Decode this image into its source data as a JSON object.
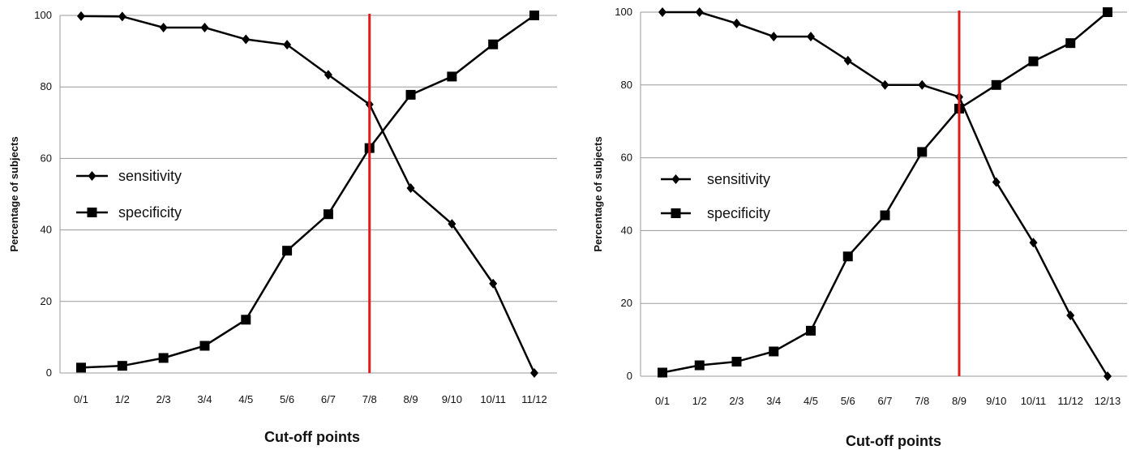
{
  "chart_data": [
    {
      "type": "line",
      "xlabel": "Cut-off points",
      "ylabel": "Percentage of subjects",
      "ylim": [
        0,
        100
      ],
      "yticks": [
        0,
        20,
        40,
        60,
        80,
        100
      ],
      "categories": [
        "0/1",
        "1/2",
        "2/3",
        "3/4",
        "4/5",
        "5/6",
        "6/7",
        "7/8",
        "8/9",
        "9/10",
        "10/11",
        "11/12"
      ],
      "series": [
        {
          "name": "sensitivity",
          "marker": "diamond",
          "values": [
            99.8,
            99.7,
            96.6,
            96.6,
            93.3,
            91.8,
            83.4,
            75.1,
            51.7,
            41.7,
            25.0,
            0
          ]
        },
        {
          "name": "specificity",
          "marker": "square",
          "values": [
            1.5,
            2.0,
            4.2,
            7.6,
            14.9,
            34.2,
            44.4,
            62.9,
            77.8,
            82.9,
            91.9,
            100
          ]
        }
      ],
      "cutoff_line": "7/8",
      "cutoff_color": "#e01b1b",
      "legend_position": "left-middle",
      "grid": true
    },
    {
      "type": "line",
      "xlabel": "Cut-off points",
      "ylabel": "Percentage of subjects",
      "ylim": [
        0,
        100
      ],
      "yticks": [
        0,
        20,
        40,
        60,
        80,
        100
      ],
      "categories": [
        "0/1",
        "1/2",
        "2/3",
        "3/4",
        "4/5",
        "5/6",
        "6/7",
        "7/8",
        "8/9",
        "9/10",
        "10/11",
        "11/12",
        "12/13"
      ],
      "series": [
        {
          "name": "sensitivity",
          "marker": "diamond",
          "values": [
            100,
            100,
            96.9,
            93.3,
            93.3,
            86.7,
            80.0,
            80.0,
            76.7,
            53.3,
            36.7,
            16.7,
            0
          ]
        },
        {
          "name": "specificity",
          "marker": "square",
          "values": [
            1.0,
            3.0,
            4.0,
            6.8,
            12.5,
            32.9,
            44.2,
            61.6,
            73.5,
            80.0,
            86.5,
            91.5,
            100
          ]
        }
      ],
      "cutoff_line": "8/9",
      "cutoff_color": "#e01b1b",
      "legend_position": "left-middle",
      "grid": true
    }
  ]
}
